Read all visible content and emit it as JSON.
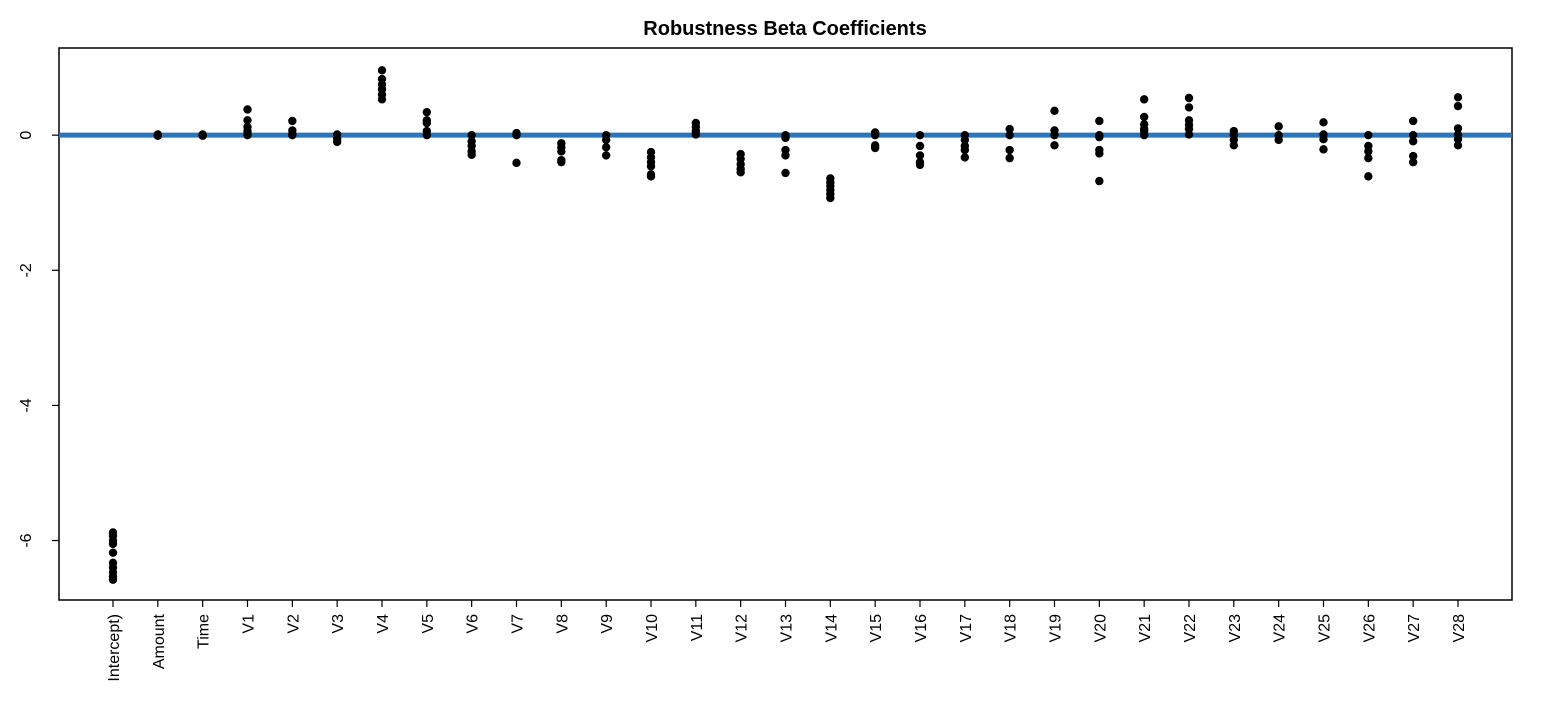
{
  "chart_data": {
    "type": "strip",
    "title": "Robustness Beta Coefficients",
    "categories": [
      "Intercept)",
      "Amount",
      "Time",
      "V1",
      "V2",
      "V3",
      "V4",
      "V5",
      "V6",
      "V7",
      "V8",
      "V9",
      "V10",
      "V11",
      "V12",
      "V13",
      "V14",
      "V15",
      "V16",
      "V17",
      "V18",
      "V19",
      "V20",
      "V21",
      "V22",
      "V23",
      "V24",
      "V25",
      "V26",
      "V27",
      "V28"
    ],
    "values": [
      [
        -5.88,
        -5.93,
        -6.0,
        -6.05,
        -6.18,
        -6.33,
        -6.4,
        -6.47,
        -6.53,
        -6.58
      ],
      [
        0.01,
        0,
        -0.01
      ],
      [
        0.01,
        0,
        -0.01
      ],
      [
        0.38,
        0.22,
        0.12,
        0.06,
        0.02,
        0
      ],
      [
        0.21,
        0.07,
        0.02,
        0
      ],
      [
        0.01,
        -0.05,
        -0.1
      ],
      [
        0.96,
        0.83,
        0.75,
        0.68,
        0.6,
        0.53
      ],
      [
        0.34,
        0.22,
        0.18,
        0.06,
        0
      ],
      [
        0,
        -0.09,
        -0.16,
        -0.24,
        -0.29
      ],
      [
        0.03,
        0,
        -0.41
      ],
      [
        -0.12,
        -0.18,
        -0.24,
        -0.37,
        -0.4
      ],
      [
        0,
        -0.07,
        -0.18,
        -0.3
      ],
      [
        -0.25,
        -0.33,
        -0.4,
        -0.46,
        -0.58,
        -0.61
      ],
      [
        0.18,
        0.12,
        0.06,
        0.01
      ],
      [
        -0.28,
        -0.35,
        -0.43,
        -0.5,
        -0.55
      ],
      [
        0,
        -0.04,
        -0.22,
        -0.3,
        -0.56
      ],
      [
        -0.64,
        -0.7,
        -0.75,
        -0.81,
        -0.87,
        -0.93
      ],
      [
        0.04,
        0,
        -0.15,
        -0.19
      ],
      [
        0,
        -0.16,
        -0.3,
        -0.4,
        -0.44
      ],
      [
        0,
        -0.07,
        -0.16,
        -0.22,
        -0.33
      ],
      [
        0.09,
        0,
        -0.22,
        -0.34
      ],
      [
        0.36,
        0.07,
        0,
        -0.15
      ],
      [
        0.21,
        0,
        -0.03,
        -0.22,
        -0.27,
        -0.68
      ],
      [
        0.53,
        0.27,
        0.16,
        0.09,
        0.06,
        0
      ],
      [
        0.55,
        0.41,
        0.22,
        0.15,
        0.09,
        0.01
      ],
      [
        0.06,
        0,
        -0.07,
        -0.15
      ],
      [
        0.13,
        0,
        -0.07
      ],
      [
        0.19,
        0.01,
        -0.06,
        -0.21
      ],
      [
        0,
        -0.16,
        -0.24,
        -0.34,
        -0.61
      ],
      [
        0.21,
        0,
        -0.09,
        -0.31,
        -0.4
      ],
      [
        0.56,
        0.43,
        0.1,
        0.01,
        -0.06,
        -0.15
      ]
    ],
    "color": "#000000",
    "hline": 0,
    "hline_color": "#2e75b6",
    "ylim": [
      -6.88,
      1.29
    ],
    "yticks": [
      0,
      -2,
      -4,
      -6
    ]
  }
}
